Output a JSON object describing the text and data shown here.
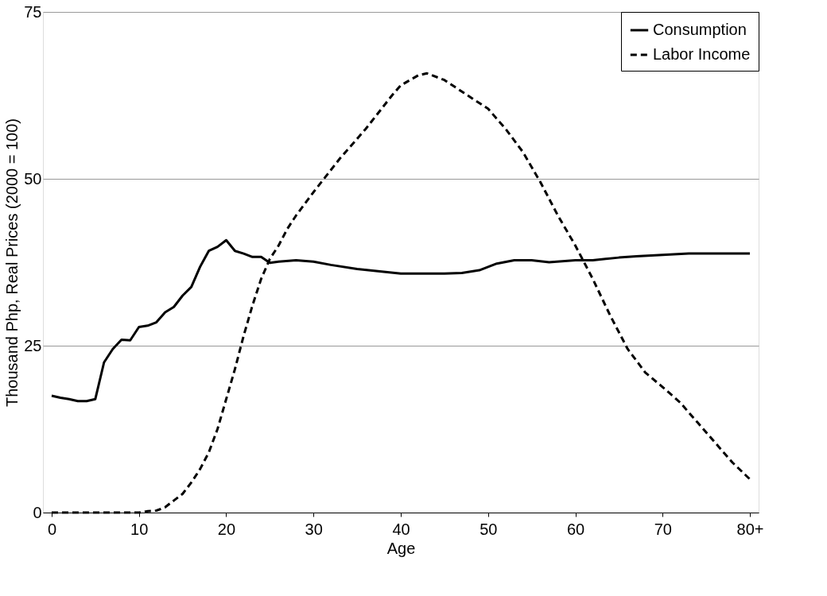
{
  "chart_data": {
    "type": "line",
    "xlabel": "Age",
    "ylabel": "Thousand Php, Real Prices (2000 = 100)",
    "xlim": [
      -1,
      81
    ],
    "xticks": [
      0,
      10,
      20,
      30,
      40,
      50,
      60,
      70,
      {
        "value": 80,
        "label": "80+"
      }
    ],
    "ylim": [
      0,
      75
    ],
    "yticks": [
      0,
      25,
      50,
      75
    ],
    "grid": "y",
    "legend": "top right",
    "marker": "none",
    "series": [
      {
        "name": "Consumption",
        "color": "#000000",
        "line_style": "solid",
        "x": [
          0,
          1,
          2,
          3,
          4,
          5,
          6,
          7,
          8,
          9,
          10,
          11,
          12,
          13,
          14,
          15,
          16,
          17,
          18,
          19,
          20,
          21,
          22,
          23,
          24,
          25,
          26,
          28,
          30,
          32,
          35,
          40,
          45,
          47,
          49,
          51,
          53,
          55,
          57,
          60,
          62,
          65,
          67,
          70,
          73,
          80
        ],
        "values": [
          17.5,
          17.2,
          17.0,
          16.7,
          16.7,
          17.0,
          22.5,
          24.5,
          25.9,
          25.8,
          27.8,
          28.0,
          28.5,
          30.0,
          30.8,
          32.5,
          33.8,
          36.8,
          39.2,
          39.8,
          40.8,
          39.2,
          38.8,
          38.3,
          38.3,
          37.4,
          37.6,
          37.8,
          37.6,
          37.1,
          36.5,
          35.8,
          35.8,
          35.9,
          36.3,
          37.3,
          37.8,
          37.8,
          37.5,
          37.8,
          37.8,
          38.2,
          38.4,
          38.6,
          38.8,
          38.8
        ]
      },
      {
        "name": "Labor Income",
        "color": "#000000",
        "line_style": "dashed",
        "x": [
          0,
          5,
          10,
          11,
          12,
          13,
          14,
          15,
          16,
          17,
          18,
          19,
          20,
          21,
          22,
          23,
          24,
          25,
          26,
          27,
          28,
          30,
          33,
          36,
          39,
          40,
          42,
          43,
          45,
          48,
          50,
          52,
          54,
          56,
          58,
          60,
          62,
          64,
          66,
          68,
          70,
          72,
          74,
          76,
          78,
          80
        ],
        "values": [
          0,
          0,
          0,
          0.2,
          0.3,
          0.8,
          1.8,
          2.8,
          4.5,
          6.5,
          9.0,
          12.5,
          17,
          21.5,
          26.5,
          31,
          35,
          38,
          40,
          42.5,
          44.5,
          48,
          53,
          57.5,
          62.5,
          64,
          65.5,
          65.8,
          64.8,
          62.2,
          60.5,
          57.5,
          54,
          49.5,
          44.5,
          40,
          35,
          29.5,
          24.5,
          21,
          18.8,
          16.5,
          13.5,
          10.5,
          7.5,
          5
        ]
      }
    ]
  }
}
